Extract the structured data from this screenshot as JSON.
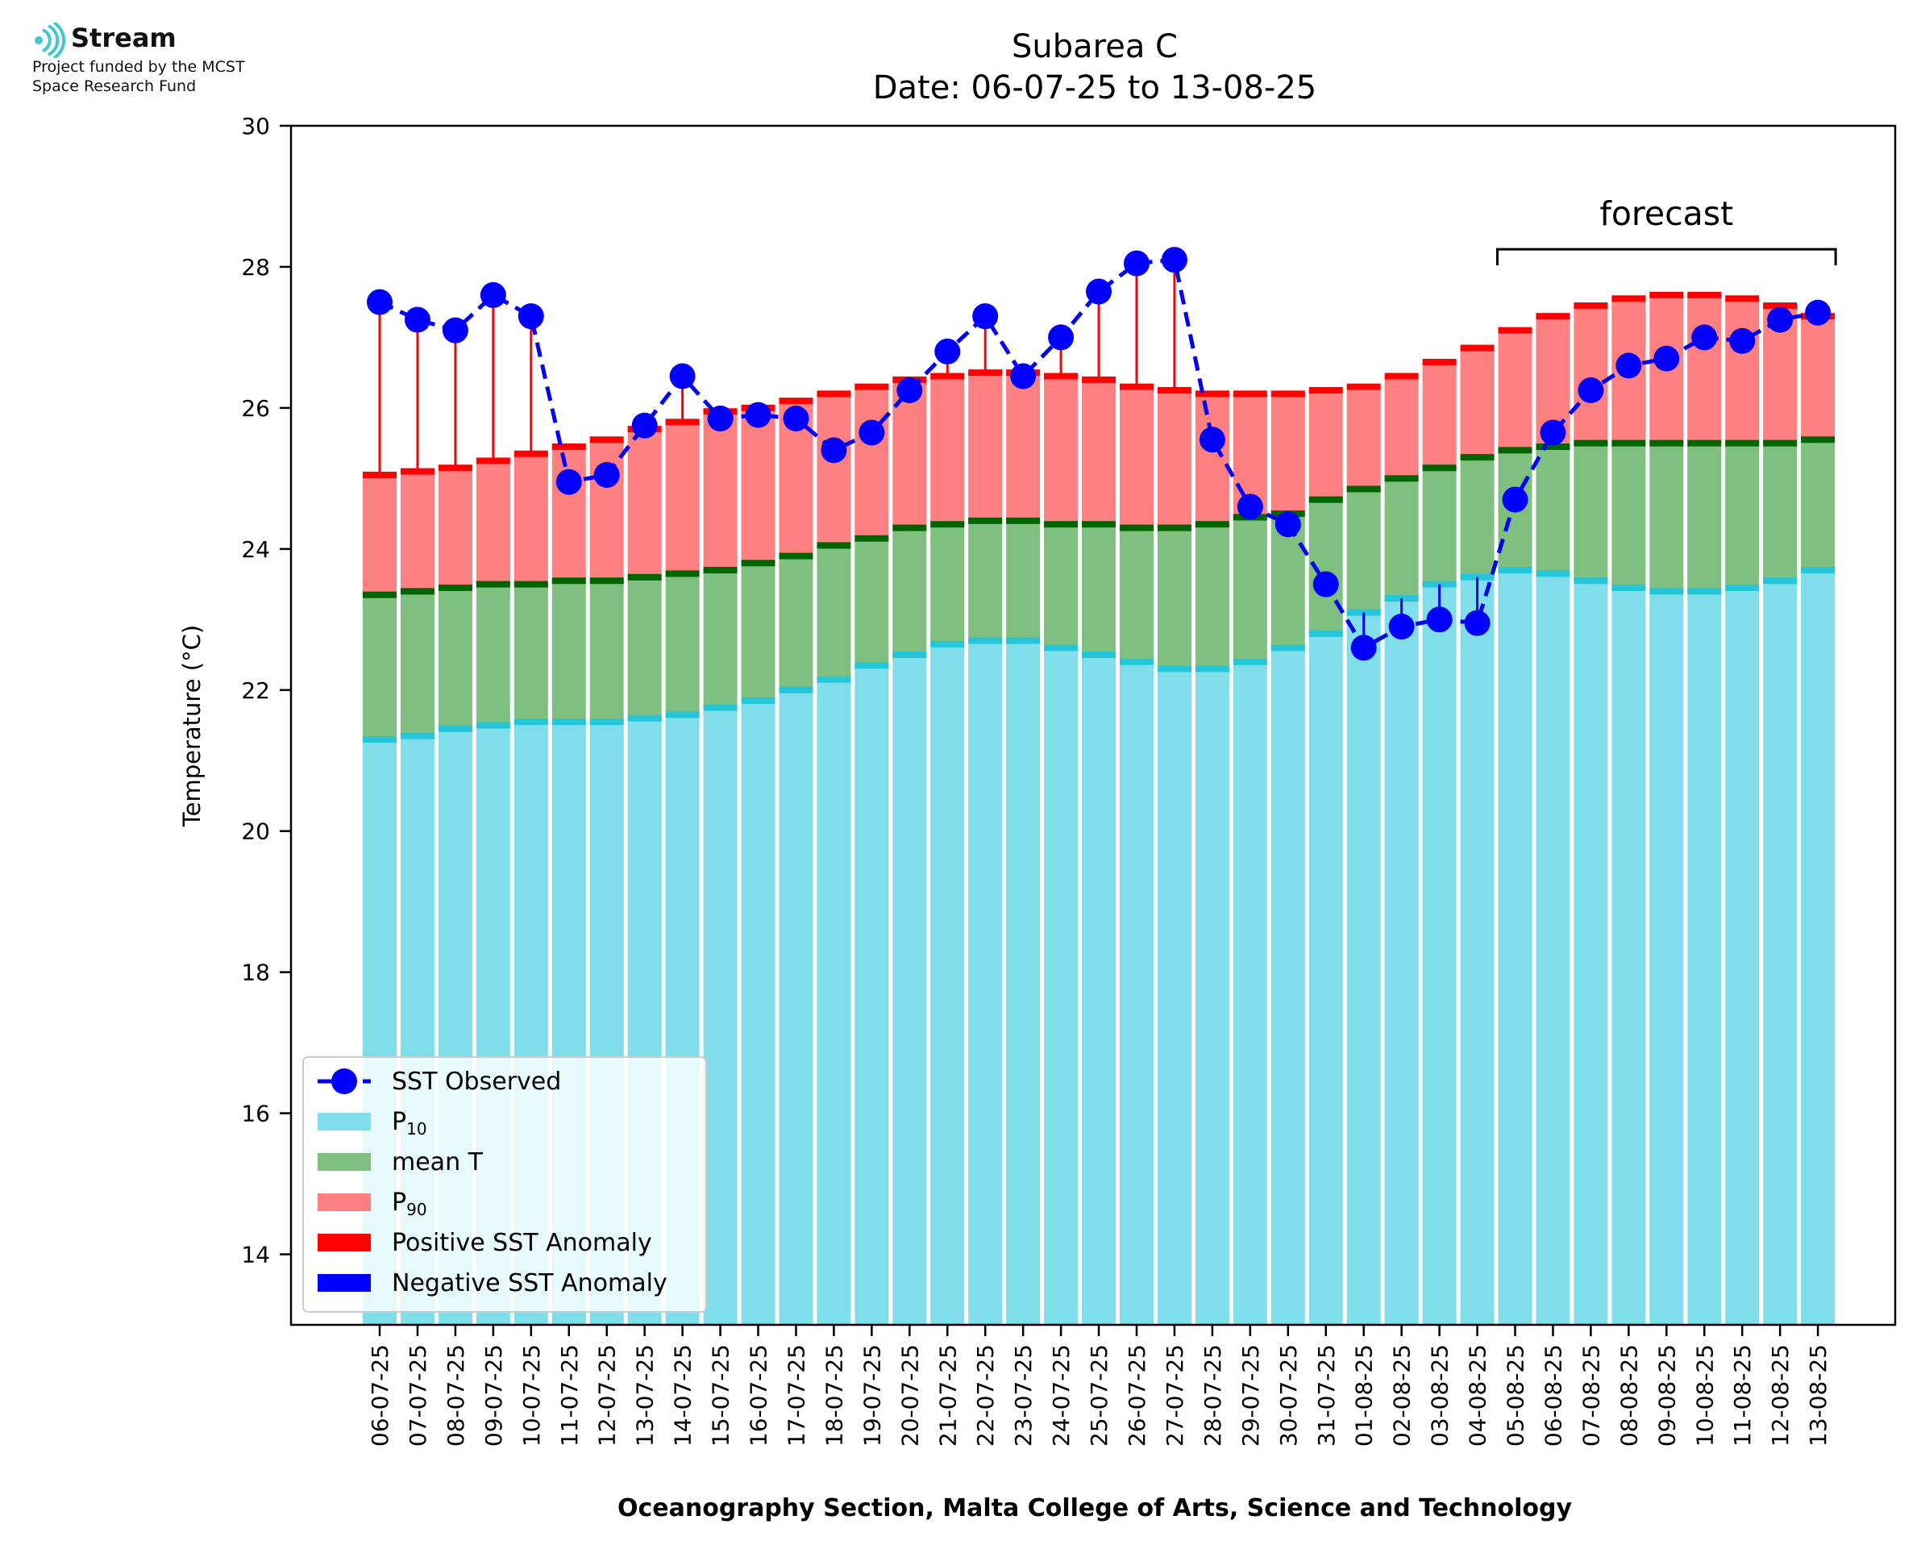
{
  "branding": {
    "name": "Stream",
    "funding_line1": "Project funded by the MCST",
    "funding_line2": "Space Research Fund"
  },
  "colors": {
    "p10": "#80deea",
    "p10_edge": "#26c6da",
    "mean": "#7fbf7f",
    "mean_edge": "#006400",
    "p90": "#ff8080",
    "p90_edge": "#ff0000",
    "positive_anomaly": "#ff0000",
    "negative_anomaly": "#0000ff",
    "observed": "#0000ff",
    "forecast_bracket": "#000000"
  },
  "chart_data": {
    "type": "bar",
    "title": "Subarea C",
    "subtitle": "Date: 06-07-25 to 13-08-25",
    "xlabel": "Oceanography Section, Malta College of Arts, Science and Technology",
    "ylabel": "Temperature (°C)",
    "ylim": [
      13,
      30
    ],
    "yticks": [
      14,
      16,
      18,
      20,
      22,
      24,
      26,
      28,
      30
    ],
    "grid": false,
    "legend_position": "lower-left",
    "forecast_label": "forecast",
    "forecast_range": [
      "05-08-25",
      "13-08-25"
    ],
    "categories": [
      "06-07-25",
      "07-07-25",
      "08-07-25",
      "09-07-25",
      "10-07-25",
      "11-07-25",
      "12-07-25",
      "13-07-25",
      "14-07-25",
      "15-07-25",
      "16-07-25",
      "17-07-25",
      "18-07-25",
      "19-07-25",
      "20-07-25",
      "21-07-25",
      "22-07-25",
      "23-07-25",
      "24-07-25",
      "25-07-25",
      "26-07-25",
      "27-07-25",
      "28-07-25",
      "29-07-25",
      "30-07-25",
      "31-07-25",
      "01-08-25",
      "02-08-25",
      "03-08-25",
      "04-08-25",
      "05-08-25",
      "06-08-25",
      "07-08-25",
      "08-08-25",
      "09-08-25",
      "10-08-25",
      "11-08-25",
      "12-08-25",
      "13-08-25"
    ],
    "series": [
      {
        "name": "P10",
        "values": [
          21.3,
          21.35,
          21.45,
          21.5,
          21.55,
          21.55,
          21.55,
          21.6,
          21.65,
          21.75,
          21.85,
          22.0,
          22.15,
          22.35,
          22.5,
          22.65,
          22.7,
          22.7,
          22.6,
          22.5,
          22.4,
          22.3,
          22.3,
          22.4,
          22.6,
          22.8,
          23.1,
          23.3,
          23.5,
          23.6,
          23.7,
          23.65,
          23.55,
          23.45,
          23.4,
          23.4,
          23.45,
          23.55,
          23.7
        ]
      },
      {
        "name": "mean T",
        "values": [
          23.35,
          23.4,
          23.45,
          23.5,
          23.5,
          23.55,
          23.55,
          23.6,
          23.65,
          23.7,
          23.8,
          23.9,
          24.05,
          24.15,
          24.3,
          24.35,
          24.4,
          24.4,
          24.35,
          24.35,
          24.3,
          24.3,
          24.35,
          24.45,
          24.5,
          24.7,
          24.85,
          25.0,
          25.15,
          25.3,
          25.4,
          25.45,
          25.5,
          25.5,
          25.5,
          25.5,
          25.5,
          25.5,
          25.55
        ]
      },
      {
        "name": "P90",
        "values": [
          25.05,
          25.1,
          25.15,
          25.25,
          25.35,
          25.45,
          25.55,
          25.7,
          25.8,
          25.95,
          26.0,
          26.1,
          26.2,
          26.3,
          26.4,
          26.45,
          26.5,
          26.5,
          26.45,
          26.4,
          26.3,
          26.25,
          26.2,
          26.2,
          26.2,
          26.25,
          26.3,
          26.45,
          26.65,
          26.85,
          27.1,
          27.3,
          27.45,
          27.55,
          27.6,
          27.6,
          27.55,
          27.45,
          27.3
        ]
      },
      {
        "name": "SST Observed",
        "values": [
          27.5,
          27.25,
          27.1,
          27.6,
          27.3,
          24.95,
          25.05,
          25.75,
          26.45,
          25.85,
          25.9,
          25.85,
          25.4,
          25.65,
          26.25,
          26.8,
          27.3,
          26.45,
          27.0,
          27.65,
          28.05,
          28.1,
          25.55,
          24.6,
          24.35,
          23.5,
          22.6,
          22.9,
          23.0,
          22.95,
          24.7,
          25.65,
          26.25,
          26.6,
          26.7,
          27.0,
          26.95,
          27.25,
          27.35
        ]
      }
    ]
  },
  "legend": [
    {
      "key": "sst",
      "label": "SST Observed"
    },
    {
      "key": "p10",
      "label": "P",
      "sub": "10"
    },
    {
      "key": "mean",
      "label": "mean T"
    },
    {
      "key": "p90",
      "label": "P",
      "sub": "90"
    },
    {
      "key": "pos",
      "label": "Positive SST Anomaly"
    },
    {
      "key": "neg",
      "label": "Negative SST Anomaly"
    }
  ]
}
